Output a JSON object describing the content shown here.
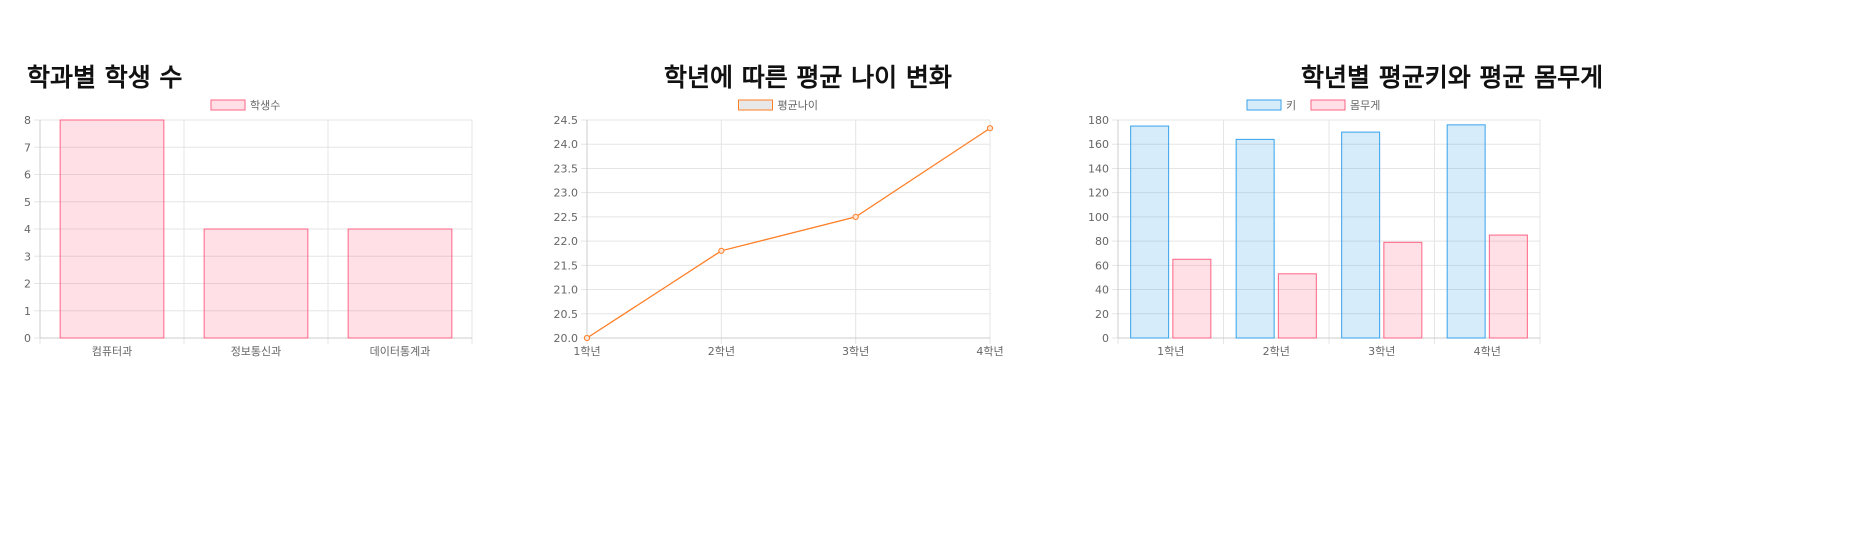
{
  "colors": {
    "pink_fill": "rgba(255,99,132,0.2)",
    "pink_border": "#ff6384",
    "blue_fill": "rgba(54,162,235,0.2)",
    "blue_border": "#36a2eb",
    "orange": "#ff7f27",
    "grid": "#e5e5e5",
    "tick_text": "#666666"
  },
  "chart_data": [
    {
      "type": "bar",
      "title": "학과별 학생 수",
      "categories": [
        "컴퓨터과",
        "정보통신과",
        "데이터통계과"
      ],
      "series": [
        {
          "name": "학생수",
          "values": [
            8,
            4,
            4
          ]
        }
      ],
      "ylim": [
        0,
        8
      ],
      "yticks": [
        "0",
        "1",
        "2",
        "3",
        "4",
        "5",
        "6",
        "7",
        "8"
      ],
      "legend": "top-center",
      "grid": true
    },
    {
      "type": "line",
      "title": "학년에 따른 평균 나이 변화",
      "categories": [
        "1학년",
        "2학년",
        "3학년",
        "4학년"
      ],
      "series": [
        {
          "name": "평균나이",
          "values": [
            20.0,
            21.8,
            22.5,
            24.33
          ]
        }
      ],
      "ylim": [
        20,
        24.5
      ],
      "yticks": [
        "20.0",
        "20.5",
        "21.0",
        "21.5",
        "22.0",
        "22.5",
        "23.0",
        "23.5",
        "24.0",
        "24.5"
      ],
      "legend": "top-center",
      "grid": true
    },
    {
      "type": "bar",
      "title": "학년별 평균키와 평균 몸무게",
      "categories": [
        "1학년",
        "2학년",
        "3학년",
        "4학년"
      ],
      "series": [
        {
          "name": "키",
          "values": [
            175,
            164,
            170,
            176
          ]
        },
        {
          "name": "몸무게",
          "values": [
            65,
            53,
            79,
            85
          ]
        }
      ],
      "ylim": [
        0,
        180
      ],
      "yticks": [
        "0",
        "20",
        "40",
        "60",
        "80",
        "100",
        "120",
        "140",
        "160",
        "180"
      ],
      "legend": "top-center",
      "grid": true
    }
  ]
}
